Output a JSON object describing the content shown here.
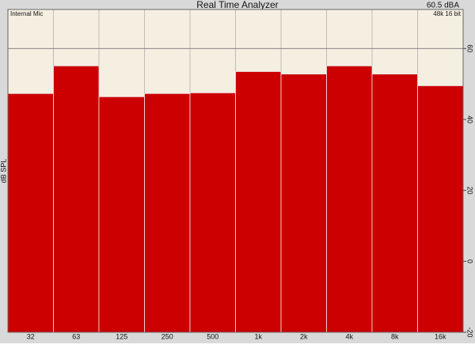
{
  "chart_data": {
    "type": "bar",
    "title": "Real Time Analyzer",
    "level": "60.5 dBA",
    "annotations": [
      "Internal Mic",
      "48k 16 bit"
    ],
    "ylabel": "dB SPL",
    "categories": [
      "32",
      "63",
      "125",
      "250",
      "500",
      "1k",
      "2k",
      "4k",
      "8k",
      "16k"
    ],
    "values": [
      47.3,
      55.1,
      46.4,
      47.3,
      47.5,
      53.5,
      52.8,
      55.1,
      52.8,
      49.5
    ],
    "color": "#cc0000",
    "ylim": [
      -20,
      71
    ],
    "yticks": [
      -20,
      0,
      20,
      40,
      60
    ],
    "grid": true
  }
}
